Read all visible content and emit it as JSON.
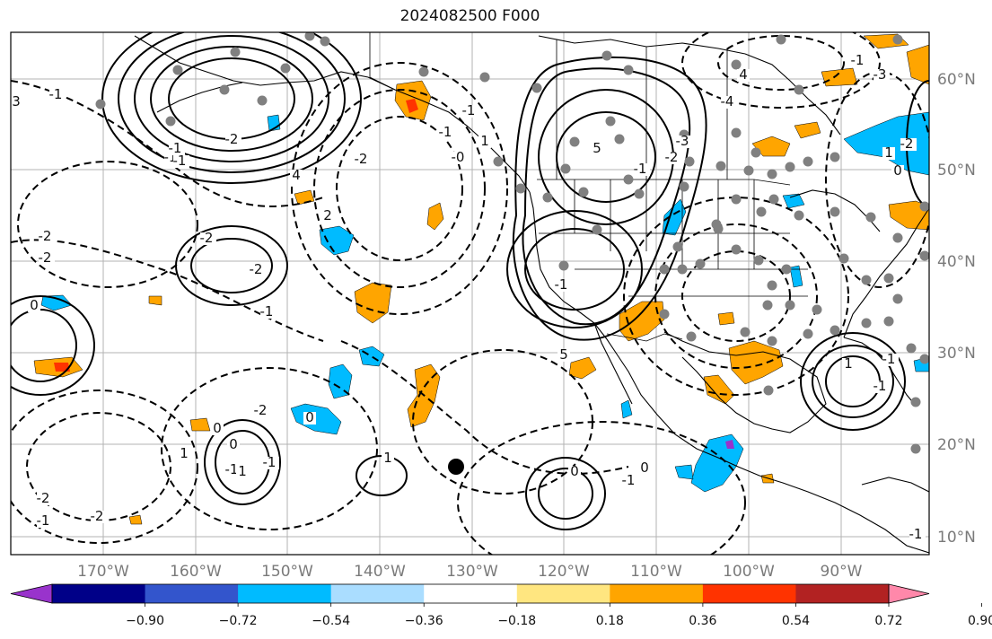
{
  "title": "2024082500 F000",
  "map": {
    "lon_labels": [
      "170°W",
      "160°W",
      "150°W",
      "140°W",
      "130°W",
      "120°W",
      "110°W",
      "100°W",
      "90°W"
    ],
    "lat_labels": [
      "60°N",
      "50°N",
      "40°N",
      "30°N",
      "20°N",
      "10°N"
    ],
    "contour_labels": [
      "-1",
      "3",
      "-2",
      "-2",
      "0",
      "-1",
      "1",
      "-2",
      "-2",
      "-1",
      "-1",
      "-1",
      "-2",
      "4",
      "-2",
      "-2",
      "0",
      "0",
      "-1",
      "-1",
      "-2",
      "0",
      "1",
      "-1",
      "1",
      "-2",
      "2",
      "-1",
      "-0",
      "-1",
      "1",
      "-1",
      "5",
      "5",
      "0",
      "-1",
      "-2",
      "-3",
      "-4",
      "4",
      "-1",
      "-3",
      "-1",
      "0",
      "-1",
      "1",
      "-1",
      "-2",
      "1",
      "-1",
      "0"
    ],
    "colors": {
      "contour": "#000000",
      "grid": "#b3b3b3",
      "coast": "#000000",
      "station_dot": "#808080",
      "marker": "#000000"
    }
  },
  "colorbar": {
    "colors": [
      "#9933cc",
      "#000088",
      "#3355cc",
      "#00bbff",
      "#aaddff",
      "#ffffff",
      "#ffe680",
      "#ffa500",
      "#ff3300",
      "#b22222",
      "#ff88aa"
    ],
    "ticks": [
      "−0.90",
      "−0.72",
      "−0.54",
      "−0.36",
      "−0.18",
      "0.18",
      "0.36",
      "0.54",
      "0.72",
      "0.90"
    ],
    "extend": "both"
  }
}
